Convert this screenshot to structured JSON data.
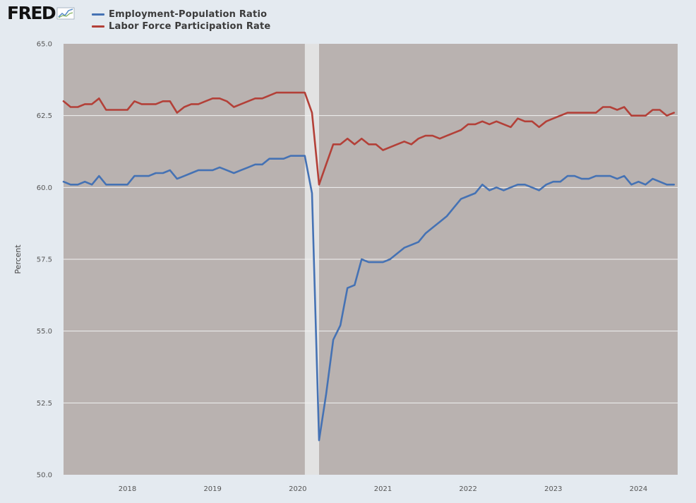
{
  "logo": {
    "text": "FRED"
  },
  "chart_data": {
    "type": "line",
    "title": "",
    "xlabel": "",
    "ylabel": "Percent",
    "ylim": [
      50,
      65
    ],
    "xlim": [
      2017.25,
      2024.46
    ],
    "yticks": [
      "50.0",
      "52.5",
      "55.0",
      "57.5",
      "60.0",
      "62.5",
      "65.0"
    ],
    "xticks": [
      "2018",
      "2019",
      "2020",
      "2021",
      "2022",
      "2023",
      "2024"
    ],
    "grid": true,
    "legend_position": "top-left",
    "recession_shading": [
      2020.083,
      2020.25
    ],
    "colors": {
      "plot_background": "#b9b2b0",
      "recession": "#e2e2e2",
      "grid": "#f2f2f2",
      "page_background": "#e4eaf0"
    },
    "series": [
      {
        "name": "Employment-Population Ratio",
        "color": "#4572b4",
        "x": [
          2017.25,
          2017.333,
          2017.417,
          2017.5,
          2017.583,
          2017.667,
          2017.75,
          2017.833,
          2017.917,
          2018.0,
          2018.083,
          2018.167,
          2018.25,
          2018.333,
          2018.417,
          2018.5,
          2018.583,
          2018.667,
          2018.75,
          2018.833,
          2018.917,
          2019.0,
          2019.083,
          2019.167,
          2019.25,
          2019.333,
          2019.417,
          2019.5,
          2019.583,
          2019.667,
          2019.75,
          2019.833,
          2019.917,
          2020.0,
          2020.083,
          2020.167,
          2020.25,
          2020.333,
          2020.417,
          2020.5,
          2020.583,
          2020.667,
          2020.75,
          2020.833,
          2020.917,
          2021.0,
          2021.083,
          2021.167,
          2021.25,
          2021.333,
          2021.417,
          2021.5,
          2021.583,
          2021.667,
          2021.75,
          2021.833,
          2021.917,
          2022.0,
          2022.083,
          2022.167,
          2022.25,
          2022.333,
          2022.417,
          2022.5,
          2022.583,
          2022.667,
          2022.75,
          2022.833,
          2022.917,
          2023.0,
          2023.083,
          2023.167,
          2023.25,
          2023.333,
          2023.417,
          2023.5,
          2023.583,
          2023.667,
          2023.75,
          2023.833,
          2023.917,
          2024.0,
          2024.083,
          2024.167,
          2024.25,
          2024.333,
          2024.417
        ],
        "values": [
          60.2,
          60.1,
          60.1,
          60.2,
          60.1,
          60.4,
          60.1,
          60.1,
          60.1,
          60.1,
          60.4,
          60.4,
          60.4,
          60.5,
          60.5,
          60.6,
          60.3,
          60.4,
          60.5,
          60.6,
          60.6,
          60.6,
          60.7,
          60.6,
          60.5,
          60.6,
          60.7,
          60.8,
          60.8,
          61.0,
          61.0,
          61.0,
          61.1,
          61.1,
          61.1,
          59.8,
          51.2,
          52.8,
          54.7,
          55.2,
          56.5,
          56.6,
          57.5,
          57.4,
          57.4,
          57.4,
          57.5,
          57.7,
          57.9,
          58.0,
          58.1,
          58.4,
          58.6,
          58.8,
          59.0,
          59.3,
          59.6,
          59.7,
          59.8,
          60.1,
          59.9,
          60.0,
          59.9,
          60.0,
          60.1,
          60.1,
          60.0,
          59.9,
          60.1,
          60.2,
          60.2,
          60.4,
          60.4,
          60.3,
          60.3,
          60.4,
          60.4,
          60.4,
          60.3,
          60.4,
          60.1,
          60.2,
          60.1,
          60.3,
          60.2,
          60.1,
          60.1
        ]
      },
      {
        "name": "Labor Force Participation Rate",
        "color": "#b34038",
        "x": [
          2017.25,
          2017.333,
          2017.417,
          2017.5,
          2017.583,
          2017.667,
          2017.75,
          2017.833,
          2017.917,
          2018.0,
          2018.083,
          2018.167,
          2018.25,
          2018.333,
          2018.417,
          2018.5,
          2018.583,
          2018.667,
          2018.75,
          2018.833,
          2018.917,
          2019.0,
          2019.083,
          2019.167,
          2019.25,
          2019.333,
          2019.417,
          2019.5,
          2019.583,
          2019.667,
          2019.75,
          2019.833,
          2019.917,
          2020.0,
          2020.083,
          2020.167,
          2020.25,
          2020.333,
          2020.417,
          2020.5,
          2020.583,
          2020.667,
          2020.75,
          2020.833,
          2020.917,
          2021.0,
          2021.083,
          2021.167,
          2021.25,
          2021.333,
          2021.417,
          2021.5,
          2021.583,
          2021.667,
          2021.75,
          2021.833,
          2021.917,
          2022.0,
          2022.083,
          2022.167,
          2022.25,
          2022.333,
          2022.417,
          2022.5,
          2022.583,
          2022.667,
          2022.75,
          2022.833,
          2022.917,
          2023.0,
          2023.083,
          2023.167,
          2023.25,
          2023.333,
          2023.417,
          2023.5,
          2023.583,
          2023.667,
          2023.75,
          2023.833,
          2023.917,
          2024.0,
          2024.083,
          2024.167,
          2024.25,
          2024.333,
          2024.417
        ],
        "values": [
          63.0,
          62.8,
          62.8,
          62.9,
          62.9,
          63.1,
          62.7,
          62.7,
          62.7,
          62.7,
          63.0,
          62.9,
          62.9,
          62.9,
          63.0,
          63.0,
          62.6,
          62.8,
          62.9,
          62.9,
          63.0,
          63.1,
          63.1,
          63.0,
          62.8,
          62.9,
          63.0,
          63.1,
          63.1,
          63.2,
          63.3,
          63.3,
          63.3,
          63.3,
          63.3,
          62.6,
          60.1,
          60.8,
          61.5,
          61.5,
          61.7,
          61.5,
          61.7,
          61.5,
          61.5,
          61.3,
          61.4,
          61.5,
          61.6,
          61.5,
          61.7,
          61.8,
          61.8,
          61.7,
          61.8,
          61.9,
          62.0,
          62.2,
          62.2,
          62.3,
          62.2,
          62.3,
          62.2,
          62.1,
          62.4,
          62.3,
          62.3,
          62.1,
          62.3,
          62.4,
          62.5,
          62.6,
          62.6,
          62.6,
          62.6,
          62.6,
          62.8,
          62.8,
          62.7,
          62.8,
          62.5,
          62.5,
          62.5,
          62.7,
          62.7,
          62.5,
          62.6
        ]
      }
    ]
  }
}
